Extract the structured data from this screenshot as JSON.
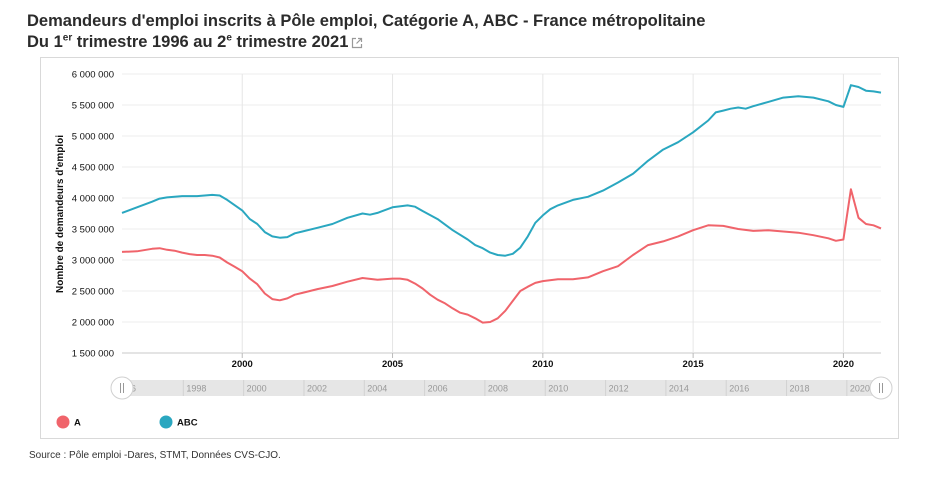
{
  "header": {
    "title_line1": "Demandeurs d'emploi inscrits à Pôle emploi, Catégorie A, ABC - France métropolitaine",
    "title_line2_pre": "Du 1",
    "title_sup1": "er",
    "title_line2_mid": " trimestre 1996 au 2",
    "title_sup2": "e",
    "title_line2_post": " trimestre 2021",
    "external_icon": "external-link-icon"
  },
  "source": "Source : Pôle emploi -Dares, STMT, Données CVS-CJO.",
  "navigator": {
    "labels": [
      "96",
      "1998",
      "2000",
      "2002",
      "2004",
      "2006",
      "2008",
      "2010",
      "2012",
      "2014",
      "2016",
      "2018",
      "2020"
    ],
    "handle_icon": "drag-handle-icon"
  },
  "chart_data": {
    "type": "line",
    "title": "Demandeurs d'emploi inscrits à Pôle emploi, Catégorie A, ABC - France métropolitaine",
    "xlabel": "",
    "ylabel": "Nombre de demandeurs d'emploi",
    "xlim": [
      1996.0,
      2021.25
    ],
    "ylim": [
      1500000,
      6000000
    ],
    "x_ticks": [
      "2000",
      "2005",
      "2010",
      "2015",
      "2020"
    ],
    "y_ticks": [
      "1 500 000",
      "2 000 000",
      "2 500 000",
      "3 000 000",
      "3 500 000",
      "4 000 000",
      "4 500 000",
      "5 000 000",
      "5 500 000",
      "6 000 000"
    ],
    "grid": true,
    "legend_position": "bottom-left",
    "series": [
      {
        "name": "A",
        "color": "#f0646b",
        "points": [
          [
            1996.0,
            3130000
          ],
          [
            1996.5,
            3140000
          ],
          [
            1997.0,
            3180000
          ],
          [
            1997.25,
            3190000
          ],
          [
            1997.5,
            3165000
          ],
          [
            1997.75,
            3150000
          ],
          [
            1998.0,
            3120000
          ],
          [
            1998.25,
            3095000
          ],
          [
            1998.5,
            3080000
          ],
          [
            1998.75,
            3080000
          ],
          [
            1999.0,
            3070000
          ],
          [
            1999.25,
            3040000
          ],
          [
            1999.5,
            2960000
          ],
          [
            1999.75,
            2890000
          ],
          [
            2000.0,
            2820000
          ],
          [
            2000.25,
            2700000
          ],
          [
            2000.5,
            2610000
          ],
          [
            2000.75,
            2460000
          ],
          [
            2001.0,
            2370000
          ],
          [
            2001.25,
            2350000
          ],
          [
            2001.5,
            2380000
          ],
          [
            2001.75,
            2440000
          ],
          [
            2002.0,
            2470000
          ],
          [
            2002.5,
            2530000
          ],
          [
            2003.0,
            2580000
          ],
          [
            2003.5,
            2650000
          ],
          [
            2004.0,
            2710000
          ],
          [
            2004.5,
            2680000
          ],
          [
            2005.0,
            2700000
          ],
          [
            2005.25,
            2700000
          ],
          [
            2005.5,
            2680000
          ],
          [
            2005.75,
            2620000
          ],
          [
            2006.0,
            2540000
          ],
          [
            2006.25,
            2440000
          ],
          [
            2006.5,
            2360000
          ],
          [
            2006.75,
            2300000
          ],
          [
            2007.0,
            2220000
          ],
          [
            2007.25,
            2150000
          ],
          [
            2007.5,
            2120000
          ],
          [
            2007.75,
            2060000
          ],
          [
            2008.0,
            1990000
          ],
          [
            2008.25,
            2000000
          ],
          [
            2008.5,
            2060000
          ],
          [
            2008.75,
            2180000
          ],
          [
            2009.0,
            2340000
          ],
          [
            2009.25,
            2500000
          ],
          [
            2009.5,
            2570000
          ],
          [
            2009.75,
            2630000
          ],
          [
            2010.0,
            2660000
          ],
          [
            2010.5,
            2690000
          ],
          [
            2011.0,
            2690000
          ],
          [
            2011.5,
            2720000
          ],
          [
            2012.0,
            2820000
          ],
          [
            2012.5,
            2900000
          ],
          [
            2013.0,
            3080000
          ],
          [
            2013.5,
            3240000
          ],
          [
            2014.0,
            3300000
          ],
          [
            2014.5,
            3380000
          ],
          [
            2015.0,
            3480000
          ],
          [
            2015.5,
            3560000
          ],
          [
            2016.0,
            3550000
          ],
          [
            2016.5,
            3500000
          ],
          [
            2017.0,
            3470000
          ],
          [
            2017.5,
            3480000
          ],
          [
            2018.0,
            3460000
          ],
          [
            2018.5,
            3440000
          ],
          [
            2019.0,
            3400000
          ],
          [
            2019.5,
            3350000
          ],
          [
            2019.75,
            3310000
          ],
          [
            2020.0,
            3330000
          ],
          [
            2020.25,
            4140000
          ],
          [
            2020.5,
            3680000
          ],
          [
            2020.75,
            3580000
          ],
          [
            2021.0,
            3560000
          ],
          [
            2021.25,
            3510000
          ]
        ]
      },
      {
        "name": "ABC",
        "color": "#2aa7c0",
        "points": [
          [
            1996.0,
            3760000
          ],
          [
            1996.5,
            3850000
          ],
          [
            1997.0,
            3940000
          ],
          [
            1997.25,
            3990000
          ],
          [
            1997.5,
            4010000
          ],
          [
            1998.0,
            4030000
          ],
          [
            1998.5,
            4030000
          ],
          [
            1999.0,
            4050000
          ],
          [
            1999.25,
            4040000
          ],
          [
            1999.5,
            3970000
          ],
          [
            2000.0,
            3800000
          ],
          [
            2000.25,
            3660000
          ],
          [
            2000.5,
            3580000
          ],
          [
            2000.75,
            3450000
          ],
          [
            2001.0,
            3380000
          ],
          [
            2001.25,
            3360000
          ],
          [
            2001.5,
            3370000
          ],
          [
            2001.75,
            3430000
          ],
          [
            2002.0,
            3460000
          ],
          [
            2002.5,
            3520000
          ],
          [
            2003.0,
            3580000
          ],
          [
            2003.5,
            3680000
          ],
          [
            2004.0,
            3750000
          ],
          [
            2004.25,
            3730000
          ],
          [
            2004.5,
            3760000
          ],
          [
            2005.0,
            3850000
          ],
          [
            2005.5,
            3880000
          ],
          [
            2005.75,
            3860000
          ],
          [
            2006.0,
            3790000
          ],
          [
            2006.5,
            3660000
          ],
          [
            2007.0,
            3480000
          ],
          [
            2007.5,
            3330000
          ],
          [
            2007.75,
            3240000
          ],
          [
            2008.0,
            3190000
          ],
          [
            2008.25,
            3120000
          ],
          [
            2008.5,
            3080000
          ],
          [
            2008.75,
            3070000
          ],
          [
            2009.0,
            3100000
          ],
          [
            2009.25,
            3200000
          ],
          [
            2009.5,
            3380000
          ],
          [
            2009.75,
            3600000
          ],
          [
            2010.0,
            3720000
          ],
          [
            2010.25,
            3820000
          ],
          [
            2010.5,
            3880000
          ],
          [
            2011.0,
            3970000
          ],
          [
            2011.5,
            4020000
          ],
          [
            2012.0,
            4120000
          ],
          [
            2012.5,
            4250000
          ],
          [
            2013.0,
            4390000
          ],
          [
            2013.5,
            4600000
          ],
          [
            2014.0,
            4780000
          ],
          [
            2014.5,
            4900000
          ],
          [
            2015.0,
            5060000
          ],
          [
            2015.5,
            5250000
          ],
          [
            2015.75,
            5380000
          ],
          [
            2016.0,
            5410000
          ],
          [
            2016.25,
            5440000
          ],
          [
            2016.5,
            5460000
          ],
          [
            2016.75,
            5440000
          ],
          [
            2017.0,
            5480000
          ],
          [
            2017.5,
            5550000
          ],
          [
            2018.0,
            5620000
          ],
          [
            2018.5,
            5640000
          ],
          [
            2019.0,
            5620000
          ],
          [
            2019.5,
            5560000
          ],
          [
            2019.75,
            5500000
          ],
          [
            2020.0,
            5470000
          ],
          [
            2020.25,
            5820000
          ],
          [
            2020.5,
            5790000
          ],
          [
            2020.75,
            5730000
          ],
          [
            2021.0,
            5720000
          ],
          [
            2021.25,
            5700000
          ]
        ]
      }
    ]
  }
}
